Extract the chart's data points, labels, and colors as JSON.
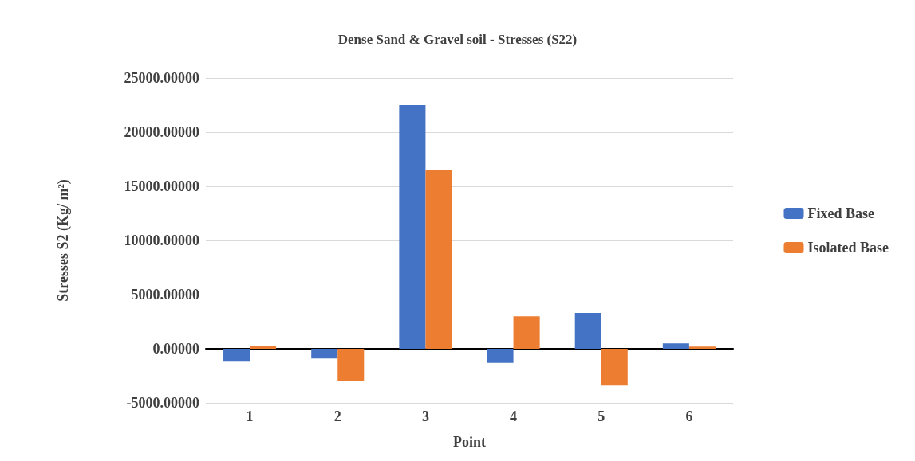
{
  "chart_data": {
    "type": "bar",
    "title": "Dense Sand & Gravel soil - Stresses (S22)",
    "xlabel": "Point",
    "ylabel": "Stresses S2 (Kg/ m²)",
    "categories": [
      "1",
      "2",
      "3",
      "4",
      "5",
      "6"
    ],
    "series": [
      {
        "name": "Fixed Base",
        "color": "#4472c4",
        "values": [
          -1200,
          -900,
          22500,
          -1300,
          3300,
          500
        ]
      },
      {
        "name": "Isolated Base",
        "color": "#ed7d31",
        "values": [
          300,
          -3000,
          16500,
          3000,
          -3400,
          200
        ]
      }
    ],
    "ylim": [
      -5000,
      25000
    ],
    "yticks": [
      {
        "value": -5000,
        "label": "-5000.00000"
      },
      {
        "value": 0,
        "label": "0.00000"
      },
      {
        "value": 5000,
        "label": "5000.00000"
      },
      {
        "value": 10000,
        "label": "10000.00000"
      },
      {
        "value": 15000,
        "label": "15000.00000"
      },
      {
        "value": 20000,
        "label": "20000.00000"
      },
      {
        "value": 25000,
        "label": "25000.00000"
      }
    ],
    "grid": "y",
    "legend": "right"
  }
}
